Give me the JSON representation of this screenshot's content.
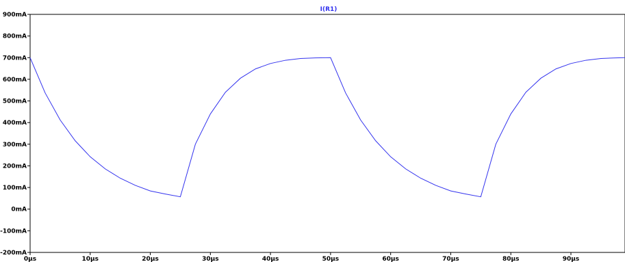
{
  "window": {
    "trace_label": "I(R1)"
  },
  "chart_data": {
    "type": "line",
    "title": "",
    "xlabel": "",
    "ylabel": "",
    "x_unit": "µs",
    "y_unit": "mA",
    "xlim": [
      0,
      99
    ],
    "ylim": [
      -200,
      900
    ],
    "x_ticks": [
      0,
      10,
      20,
      30,
      40,
      50,
      60,
      70,
      80,
      90
    ],
    "x_tick_labels": [
      "0µs",
      "10µs",
      "20µs",
      "30µs",
      "40µs",
      "50µs",
      "60µs",
      "70µs",
      "80µs",
      "90µs"
    ],
    "y_ticks": [
      900,
      800,
      700,
      600,
      500,
      400,
      300,
      200,
      100,
      0,
      -100,
      -200
    ],
    "y_tick_labels": [
      "900mA",
      "800mA",
      "700mA",
      "600mA",
      "500mA",
      "400mA",
      "300mA",
      "200mA",
      "100mA",
      "0mA",
      "-100mA",
      "-200mA"
    ],
    "grid": false,
    "legend": "top-center",
    "series": [
      {
        "name": "I(R1)",
        "color": "#3333ee",
        "x": [
          0,
          2.5,
          5,
          7.5,
          10,
          12.5,
          15,
          17.5,
          20,
          22.5,
          25,
          27.5,
          30,
          32.5,
          35,
          37.5,
          40,
          42.5,
          45,
          47.5,
          50,
          52.5,
          55,
          57.5,
          60,
          62.5,
          65,
          67.5,
          70,
          72.5,
          75,
          77.5,
          80,
          82.5,
          85,
          87.5,
          90,
          92.5,
          95,
          97.5,
          99
        ],
        "y": [
          700,
          537,
          412,
          316,
          242,
          186,
          143,
          110,
          84,
          70,
          57,
          300,
          440,
          540,
          605,
          648,
          673,
          688,
          696,
          699,
          700,
          537,
          412,
          316,
          242,
          186,
          143,
          110,
          84,
          70,
          57,
          300,
          440,
          540,
          605,
          648,
          673,
          688,
          696,
          699,
          700
        ]
      }
    ]
  }
}
